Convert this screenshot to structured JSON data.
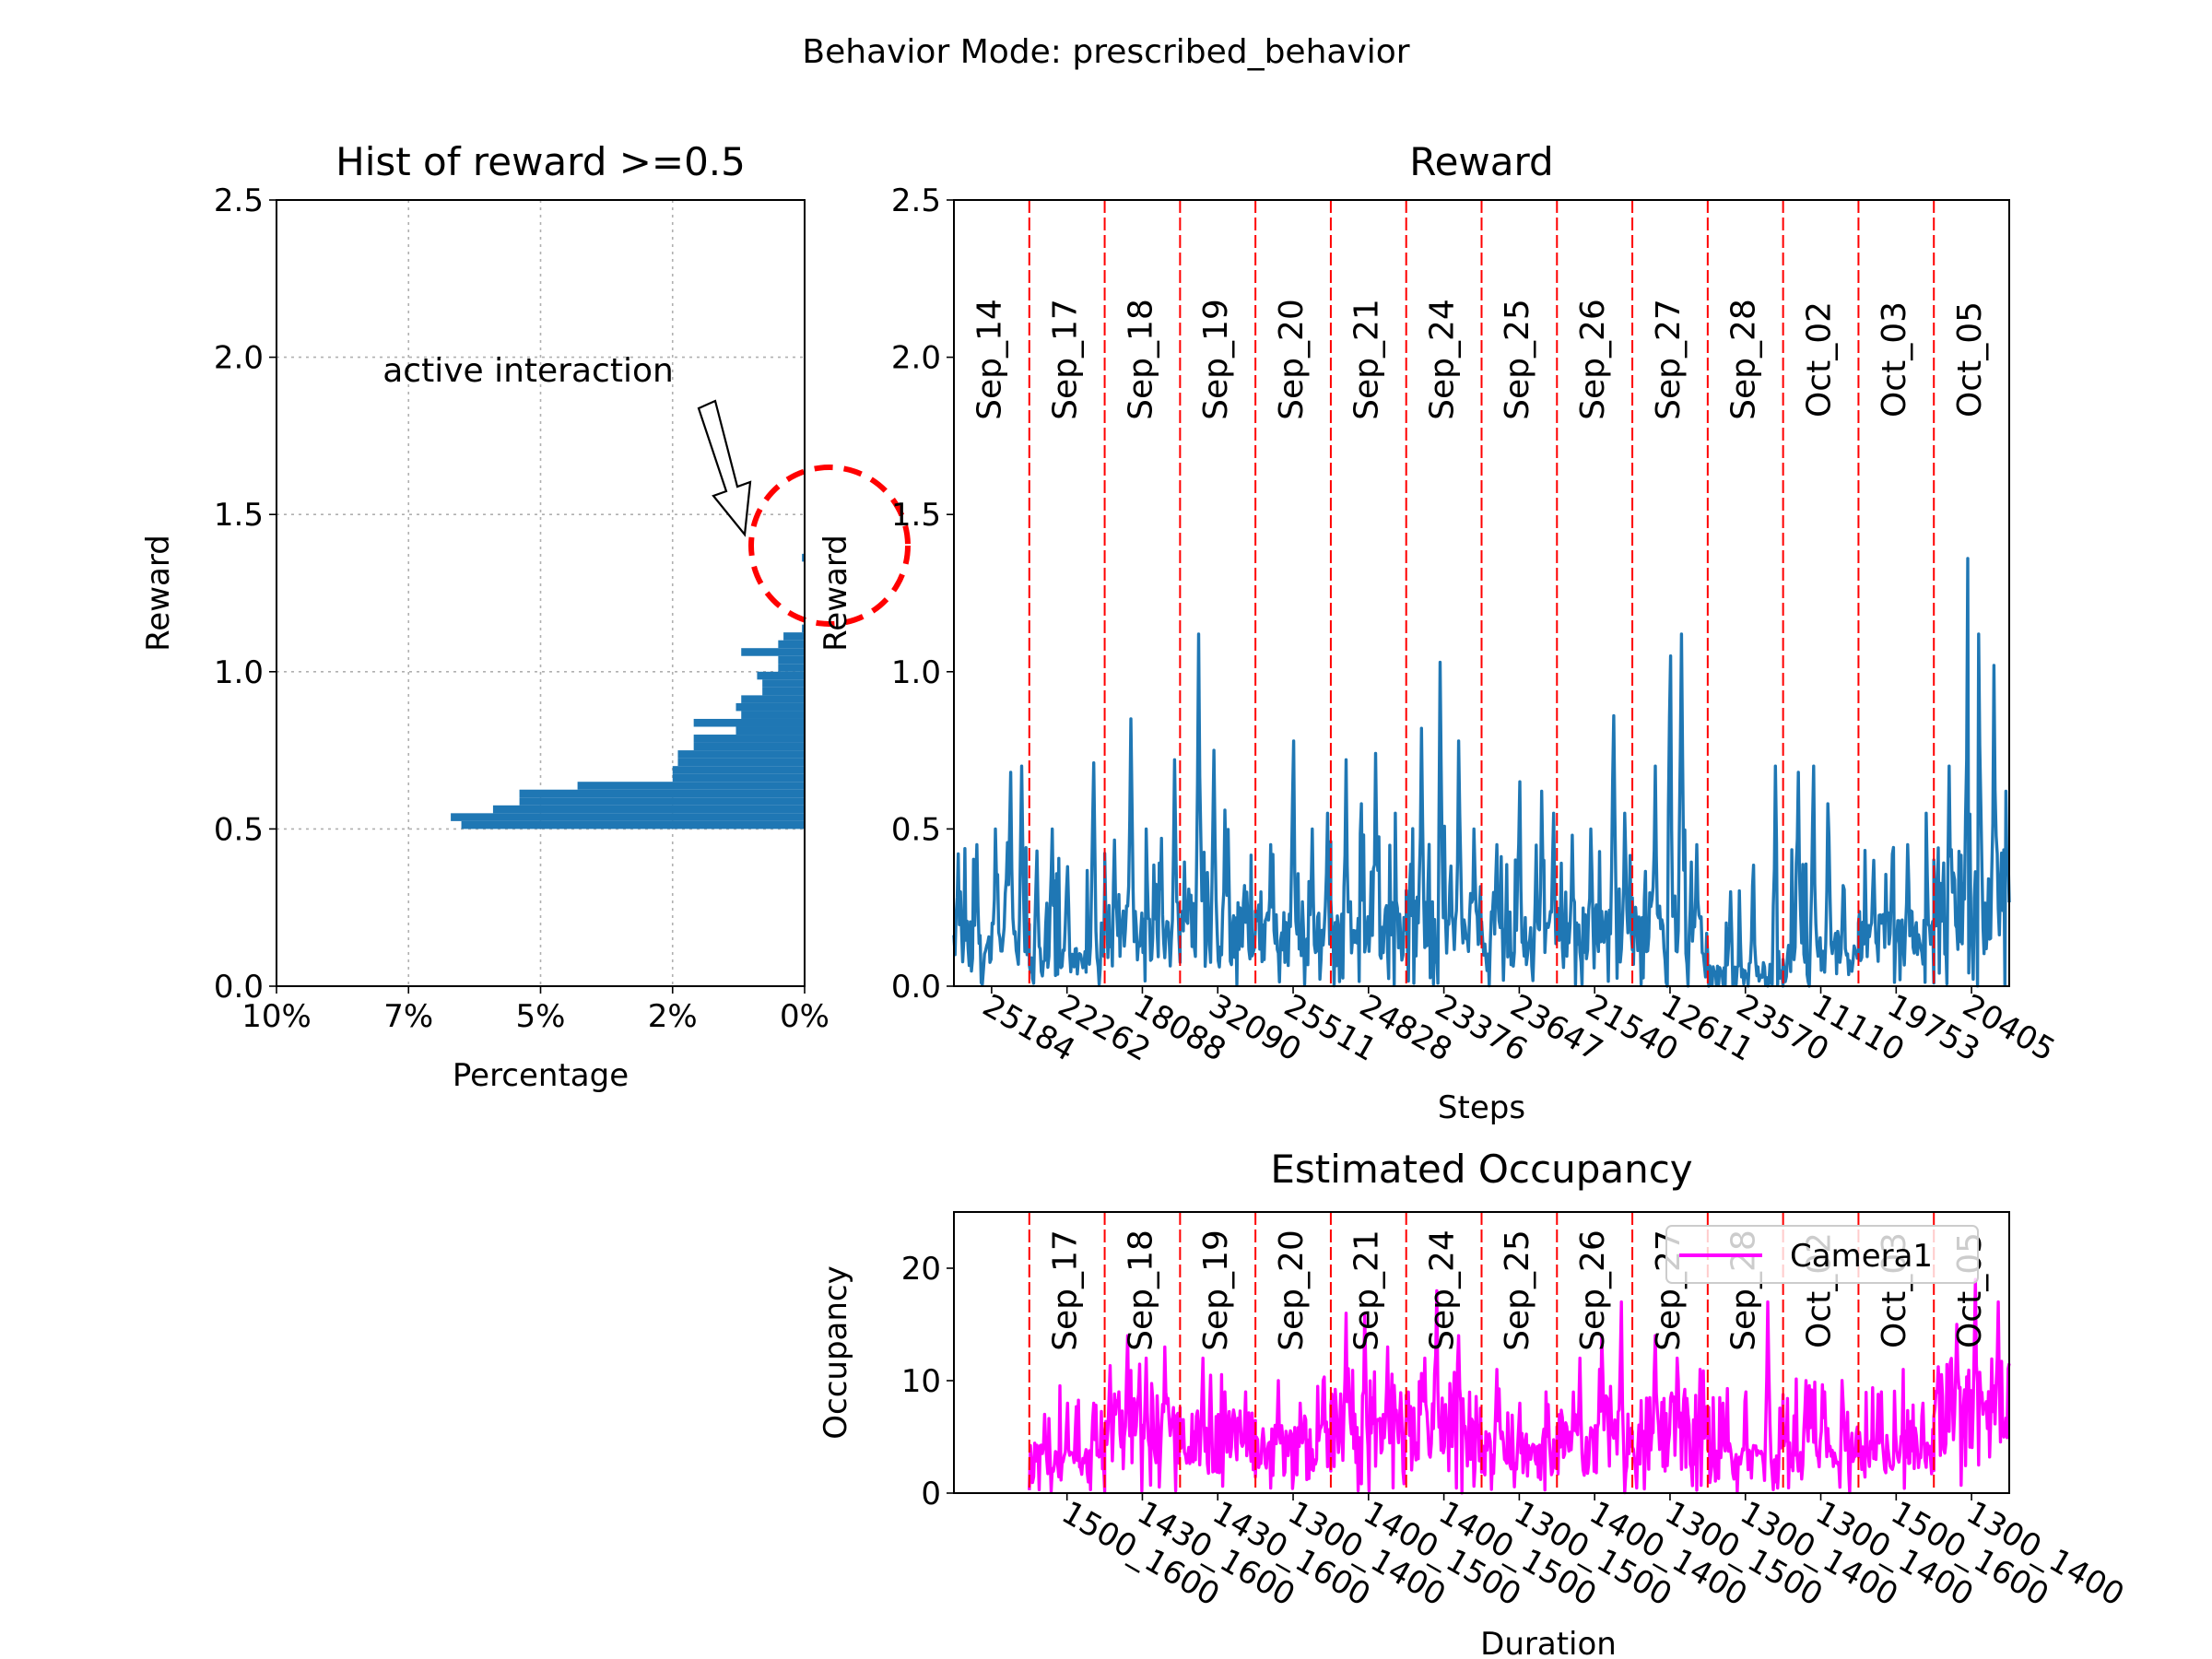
{
  "figure_title": "Behavior Mode: prescribed_behavior",
  "colors": {
    "reward": "#1f77b4",
    "occupancy": "#ff00ff",
    "day_boundary": "#ff0000",
    "circle": "#ff0000"
  },
  "chart_data": [
    {
      "id": "hist",
      "type": "bar",
      "orientation": "horizontal",
      "title": "Hist of reward >=0.5",
      "xlabel": "Percentage",
      "ylabel": "Reward",
      "x_inverted": true,
      "xlim": [
        0,
        10
      ],
      "ylim": [
        0,
        2.5
      ],
      "x_ticks": [
        {
          "v": 10,
          "label": "10%"
        },
        {
          "v": 7.5,
          "label": "7%"
        },
        {
          "v": 5,
          "label": "5%"
        },
        {
          "v": 2.5,
          "label": "2%"
        },
        {
          "v": 0,
          "label": "0%"
        }
      ],
      "y_ticks": [
        {
          "v": 0,
          "label": "0.0"
        },
        {
          "v": 0.5,
          "label": "0.5"
        },
        {
          "v": 1.0,
          "label": "1.0"
        },
        {
          "v": 1.5,
          "label": "1.5"
        },
        {
          "v": 2.0,
          "label": "2.0"
        },
        {
          "v": 2.5,
          "label": "2.5"
        }
      ],
      "grid": true,
      "bin_width": 0.025,
      "bins": [
        [
          0.5,
          6.5
        ],
        [
          0.525,
          6.7
        ],
        [
          0.55,
          5.9
        ],
        [
          0.575,
          5.4
        ],
        [
          0.6,
          5.4
        ],
        [
          0.625,
          4.3
        ],
        [
          0.65,
          2.5
        ],
        [
          0.675,
          2.5
        ],
        [
          0.7,
          2.4
        ],
        [
          0.725,
          2.4
        ],
        [
          0.75,
          2.1
        ],
        [
          0.775,
          2.1
        ],
        [
          0.8,
          1.3
        ],
        [
          0.825,
          2.1
        ],
        [
          0.85,
          1.2
        ],
        [
          0.875,
          1.3
        ],
        [
          0.9,
          1.2
        ],
        [
          0.925,
          0.8
        ],
        [
          0.95,
          0.8
        ],
        [
          0.975,
          0.9
        ],
        [
          1.0,
          0.5
        ],
        [
          1.025,
          0.5
        ],
        [
          1.05,
          1.2
        ],
        [
          1.075,
          0.5
        ],
        [
          1.1,
          0.4
        ],
        [
          1.125,
          0.05
        ],
        [
          1.35,
          0.05
        ]
      ],
      "annotation": {
        "text": "active interaction"
      }
    },
    {
      "id": "reward",
      "type": "line",
      "title": "Reward",
      "xlabel": "Steps",
      "ylabel": "Reward",
      "ylim": [
        0,
        2.5
      ],
      "y_ticks": [
        {
          "v": 0,
          "label": "0.0"
        },
        {
          "v": 0.5,
          "label": "0.5"
        },
        {
          "v": 1.0,
          "label": "1.0"
        },
        {
          "v": 1.5,
          "label": "1.5"
        },
        {
          "v": 2.0,
          "label": "2.0"
        },
        {
          "v": 2.5,
          "label": "2.5"
        }
      ],
      "days": [
        "Sep_14",
        "Sep_17",
        "Sep_18",
        "Sep_19",
        "Sep_20",
        "Sep_21",
        "Sep_24",
        "Sep_25",
        "Sep_26",
        "Sep_27",
        "Sep_28",
        "Oct_02",
        "Oct_03",
        "Oct_05"
      ],
      "x_tick_labels": [
        "25184",
        "22262",
        "18088",
        "32090",
        "25511",
        "24828",
        "23376",
        "23647",
        "21540",
        "12611",
        "23570",
        "11110",
        "19753",
        "20405"
      ],
      "segment_profiles": [
        {
          "day": "Sep_14",
          "base": 0.14,
          "peaks": [
            [
              0.08,
              0.3
            ],
            [
              0.3,
              0.45
            ],
            [
              0.55,
              0.5
            ],
            [
              0.75,
              0.68
            ],
            [
              0.9,
              0.7
            ]
          ]
        },
        {
          "day": "Sep_17",
          "base": 0.08,
          "peaks": [
            [
              0.1,
              0.43
            ],
            [
              0.3,
              0.5
            ],
            [
              0.5,
              0.38
            ],
            [
              0.85,
              0.71
            ]
          ]
        },
        {
          "day": "Sep_18",
          "base": 0.18,
          "peaks": [
            [
              0.35,
              0.85
            ],
            [
              0.55,
              0.5
            ],
            [
              0.75,
              0.47
            ],
            [
              0.93,
              0.72
            ]
          ]
        },
        {
          "day": "Sep_19",
          "base": 0.2,
          "peaks": [
            [
              0.25,
              1.12
            ],
            [
              0.45,
              0.75
            ],
            [
              0.6,
              0.56
            ],
            [
              0.85,
              0.32
            ]
          ]
        },
        {
          "day": "Sep_20",
          "base": 0.16,
          "peaks": [
            [
              0.2,
              0.45
            ],
            [
              0.5,
              0.78
            ],
            [
              0.75,
              0.5
            ],
            [
              0.95,
              0.55
            ]
          ]
        },
        {
          "day": "Sep_21",
          "base": 0.18,
          "peaks": [
            [
              0.2,
              0.72
            ],
            [
              0.4,
              0.58
            ],
            [
              0.6,
              0.74
            ],
            [
              0.85,
              0.55
            ]
          ]
        },
        {
          "day": "Sep_24",
          "base": 0.22,
          "peaks": [
            [
              0.2,
              0.82
            ],
            [
              0.45,
              1.03
            ],
            [
              0.7,
              0.78
            ],
            [
              0.9,
              0.5
            ]
          ]
        },
        {
          "day": "Sep_25",
          "base": 0.16,
          "peaks": [
            [
              0.2,
              0.45
            ],
            [
              0.5,
              0.65
            ],
            [
              0.8,
              0.62
            ],
            [
              0.95,
              0.55
            ]
          ]
        },
        {
          "day": "Sep_26",
          "base": 0.18,
          "peaks": [
            [
              0.2,
              0.48
            ],
            [
              0.45,
              0.5
            ],
            [
              0.75,
              0.86
            ],
            [
              0.9,
              0.55
            ]
          ]
        },
        {
          "day": "Sep_27",
          "base": 0.2,
          "peaks": [
            [
              0.3,
              0.7
            ],
            [
              0.5,
              1.05
            ],
            [
              0.65,
              1.12
            ],
            [
              0.85,
              0.45
            ]
          ]
        },
        {
          "day": "Sep_28",
          "base": 0.05,
          "peaks": [
            [
              0.3,
              0.3
            ],
            [
              0.6,
              0.32
            ],
            [
              0.9,
              0.7
            ]
          ]
        },
        {
          "day": "Oct_02",
          "base": 0.1,
          "peaks": [
            [
              0.2,
              0.68
            ],
            [
              0.4,
              0.7
            ],
            [
              0.6,
              0.58
            ],
            [
              0.8,
              0.32
            ]
          ]
        },
        {
          "day": "Oct_03",
          "base": 0.16,
          "peaks": [
            [
              0.2,
              0.4
            ],
            [
              0.45,
              0.42
            ],
            [
              0.65,
              0.45
            ],
            [
              0.9,
              0.55
            ]
          ]
        },
        {
          "day": "Oct_05",
          "base": 0.3,
          "peaks": [
            [
              0.2,
              0.7
            ],
            [
              0.45,
              1.36
            ],
            [
              0.6,
              1.12
            ],
            [
              0.8,
              1.02
            ],
            [
              0.95,
              0.62
            ]
          ]
        }
      ]
    },
    {
      "id": "occupancy",
      "type": "line",
      "title": "Estimated Occupancy",
      "xlabel": "Duration",
      "ylabel": "Occupancy",
      "ylim": [
        0,
        25
      ],
      "y_ticks": [
        {
          "v": 0,
          "label": "0"
        },
        {
          "v": 10,
          "label": "10"
        },
        {
          "v": 20,
          "label": "20"
        }
      ],
      "days": [
        "Sep_17",
        "Sep_18",
        "Sep_19",
        "Sep_20",
        "Sep_21",
        "Sep_24",
        "Sep_25",
        "Sep_26",
        "Sep_27",
        "Sep_28",
        "Oct_02",
        "Oct_03",
        "Oct_05"
      ],
      "x_tick_labels": [
        "1500_1600",
        "1430_1600",
        "1430_1600",
        "1300_1400",
        "1400_1500",
        "1400_1500",
        "1300_1500",
        "1400_1400",
        "1300_1500",
        "1300_1400",
        "1300_1400",
        "1500_1600",
        "1300_1400"
      ],
      "legend": {
        "name": "Camera1",
        "placement": "upper right"
      },
      "segment_profiles": [
        {
          "day": "Sep_17",
          "base": 3,
          "peaks": [
            [
              0.2,
              7
            ],
            [
              0.5,
              8
            ],
            [
              0.85,
              8
            ]
          ]
        },
        {
          "day": "Sep_18",
          "base": 6,
          "peaks": [
            [
              0.3,
              14
            ],
            [
              0.55,
              12
            ],
            [
              0.8,
              13
            ]
          ]
        },
        {
          "day": "Sep_19",
          "base": 5,
          "peaks": [
            [
              0.3,
              12
            ],
            [
              0.6,
              9
            ],
            [
              0.85,
              6
            ]
          ]
        },
        {
          "day": "Sep_20",
          "base": 4,
          "peaks": [
            [
              0.3,
              10
            ],
            [
              0.6,
              8
            ],
            [
              0.9,
              10
            ]
          ]
        },
        {
          "day": "Sep_21",
          "base": 6,
          "peaks": [
            [
              0.2,
              16
            ],
            [
              0.45,
              16
            ],
            [
              0.75,
              13
            ]
          ]
        },
        {
          "day": "Sep_24",
          "base": 6,
          "peaks": [
            [
              0.25,
              12
            ],
            [
              0.4,
              18
            ],
            [
              0.7,
              14
            ]
          ]
        },
        {
          "day": "Sep_25",
          "base": 4,
          "peaks": [
            [
              0.2,
              11
            ],
            [
              0.5,
              8
            ],
            [
              0.85,
              9
            ]
          ]
        },
        {
          "day": "Sep_26",
          "base": 5,
          "peaks": [
            [
              0.3,
              12
            ],
            [
              0.6,
              14
            ],
            [
              0.85,
              17
            ]
          ]
        },
        {
          "day": "Sep_27",
          "base": 6,
          "peaks": [
            [
              0.3,
              14
            ],
            [
              0.6,
              12
            ],
            [
              0.9,
              11
            ]
          ]
        },
        {
          "day": "Sep_28",
          "base": 3,
          "peaks": [
            [
              0.2,
              8
            ],
            [
              0.5,
              9
            ],
            [
              0.8,
              17
            ]
          ]
        },
        {
          "day": "Oct_02",
          "base": 4,
          "peaks": [
            [
              0.3,
              10
            ],
            [
              0.55,
              9
            ],
            [
              0.8,
              8
            ]
          ]
        },
        {
          "day": "Oct_03",
          "base": 4,
          "peaks": [
            [
              0.3,
              9
            ],
            [
              0.6,
              11
            ],
            [
              0.85,
              8
            ]
          ]
        },
        {
          "day": "Oct_05",
          "base": 8,
          "peaks": [
            [
              0.3,
              15
            ],
            [
              0.55,
              19
            ],
            [
              0.85,
              17
            ]
          ]
        }
      ]
    }
  ]
}
